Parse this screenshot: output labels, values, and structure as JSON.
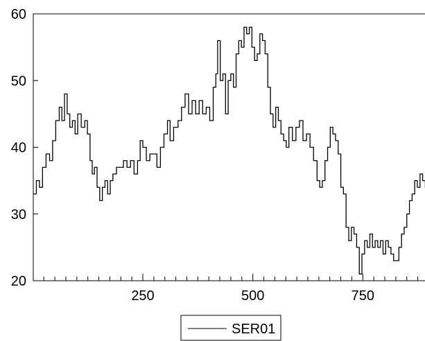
{
  "chart_data": {
    "type": "line",
    "title": "",
    "xlabel": "",
    "ylabel": "",
    "xlim": [
      1,
      915
    ],
    "ylim": [
      20,
      60
    ],
    "x_ticks": [
      250,
      500,
      750
    ],
    "y_ticks": [
      20,
      30,
      40,
      50,
      60
    ],
    "x_tick_labels": [
      "250",
      "500",
      "750"
    ],
    "y_tick_labels": [
      "20",
      "30",
      "40",
      "50",
      "60"
    ],
    "grid": false,
    "legend_position": "bottom-center",
    "series": [
      {
        "name": "SER01",
        "color": "#000000",
        "points": [
          [
            1,
            33
          ],
          [
            8,
            35
          ],
          [
            15,
            34
          ],
          [
            22,
            37
          ],
          [
            30,
            39
          ],
          [
            38,
            38
          ],
          [
            45,
            41
          ],
          [
            52,
            44
          ],
          [
            60,
            46
          ],
          [
            66,
            44
          ],
          [
            72,
            48
          ],
          [
            78,
            45
          ],
          [
            84,
            43
          ],
          [
            90,
            44
          ],
          [
            96,
            42
          ],
          [
            102,
            45
          ],
          [
            110,
            43
          ],
          [
            118,
            44
          ],
          [
            124,
            42
          ],
          [
            130,
            38
          ],
          [
            135,
            36
          ],
          [
            140,
            37
          ],
          [
            146,
            34
          ],
          [
            152,
            32
          ],
          [
            158,
            34
          ],
          [
            164,
            35
          ],
          [
            170,
            33
          ],
          [
            176,
            35
          ],
          [
            182,
            36
          ],
          [
            190,
            37
          ],
          [
            198,
            37
          ],
          [
            206,
            38
          ],
          [
            214,
            37
          ],
          [
            222,
            38
          ],
          [
            230,
            36
          ],
          [
            238,
            38
          ],
          [
            244,
            41
          ],
          [
            250,
            40
          ],
          [
            258,
            38
          ],
          [
            266,
            39
          ],
          [
            274,
            39
          ],
          [
            282,
            37
          ],
          [
            290,
            40
          ],
          [
            298,
            42
          ],
          [
            306,
            44
          ],
          [
            312,
            41
          ],
          [
            320,
            43
          ],
          [
            330,
            44
          ],
          [
            338,
            46
          ],
          [
            346,
            48
          ],
          [
            354,
            45
          ],
          [
            362,
            47
          ],
          [
            370,
            45
          ],
          [
            378,
            47
          ],
          [
            386,
            45
          ],
          [
            394,
            46
          ],
          [
            402,
            44
          ],
          [
            410,
            49
          ],
          [
            416,
            51
          ],
          [
            420,
            56
          ],
          [
            426,
            50
          ],
          [
            432,
            51
          ],
          [
            438,
            45
          ],
          [
            444,
            50
          ],
          [
            450,
            51
          ],
          [
            456,
            49
          ],
          [
            462,
            54
          ],
          [
            468,
            56
          ],
          [
            474,
            55
          ],
          [
            480,
            58
          ],
          [
            486,
            57
          ],
          [
            492,
            58
          ],
          [
            498,
            55
          ],
          [
            504,
            53
          ],
          [
            510,
            54
          ],
          [
            516,
            57
          ],
          [
            522,
            56
          ],
          [
            528,
            54
          ],
          [
            534,
            49
          ],
          [
            540,
            45
          ],
          [
            546,
            43
          ],
          [
            552,
            46
          ],
          [
            558,
            44
          ],
          [
            564,
            42
          ],
          [
            570,
            41
          ],
          [
            576,
            40
          ],
          [
            582,
            43
          ],
          [
            590,
            41
          ],
          [
            598,
            43
          ],
          [
            606,
            44
          ],
          [
            614,
            41
          ],
          [
            622,
            42
          ],
          [
            630,
            40
          ],
          [
            638,
            38
          ],
          [
            646,
            35
          ],
          [
            652,
            34
          ],
          [
            658,
            35
          ],
          [
            664,
            38
          ],
          [
            670,
            40
          ],
          [
            676,
            43
          ],
          [
            682,
            42
          ],
          [
            688,
            41
          ],
          [
            694,
            39
          ],
          [
            700,
            34
          ],
          [
            706,
            33
          ],
          [
            712,
            28
          ],
          [
            718,
            26
          ],
          [
            724,
            28
          ],
          [
            730,
            27
          ],
          [
            736,
            25
          ],
          [
            742,
            21
          ],
          [
            748,
            24
          ],
          [
            754,
            26
          ],
          [
            760,
            25
          ],
          [
            766,
            27
          ],
          [
            772,
            25
          ],
          [
            778,
            26
          ],
          [
            784,
            25
          ],
          [
            790,
            26
          ],
          [
            796,
            24
          ],
          [
            802,
            26
          ],
          [
            808,
            25
          ],
          [
            814,
            24
          ],
          [
            820,
            23
          ],
          [
            826,
            23
          ],
          [
            832,
            25
          ],
          [
            838,
            27
          ],
          [
            844,
            28
          ],
          [
            850,
            30
          ],
          [
            856,
            32
          ],
          [
            862,
            33
          ],
          [
            868,
            35
          ],
          [
            874,
            34
          ],
          [
            880,
            36
          ],
          [
            886,
            35
          ],
          [
            892,
            34
          ],
          [
            898,
            35
          ],
          [
            904,
            36
          ],
          [
            910,
            37
          ],
          [
            915,
            37
          ]
        ]
      }
    ]
  }
}
